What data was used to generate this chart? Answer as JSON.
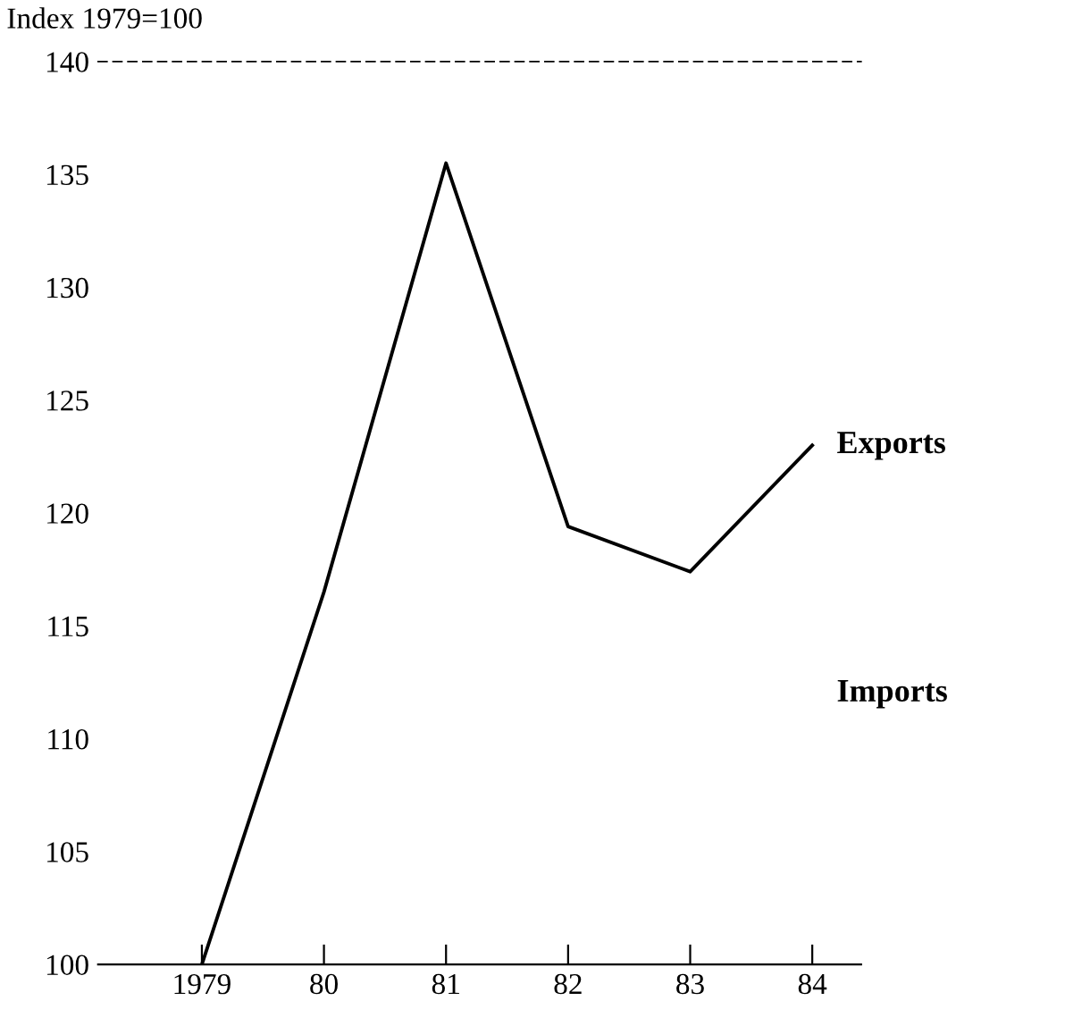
{
  "chart_data": {
    "type": "line",
    "ylabel": "Index 1979=100",
    "categories": [
      "1979",
      "80",
      "81",
      "82",
      "83",
      "84"
    ],
    "series": [
      {
        "name": "Exports",
        "color": "#000000",
        "values": [
          100,
          116.5,
          135.5,
          119.4,
          117.4,
          123
        ]
      }
    ],
    "annotations": [
      "Imports"
    ],
    "ylim": [
      100,
      140
    ],
    "yticks": [
      100,
      105,
      110,
      115,
      120,
      125,
      130,
      135,
      140
    ],
    "grid": false,
    "legend": false,
    "marker": "none",
    "line_style": "solid"
  }
}
